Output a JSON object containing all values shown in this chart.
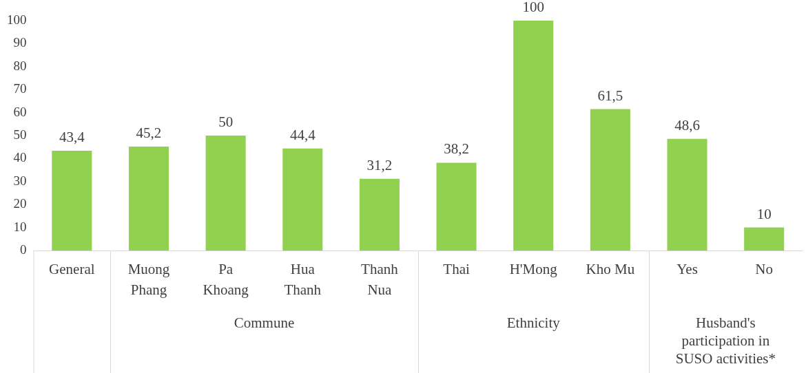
{
  "chart_data": {
    "type": "bar",
    "categories": [
      "General",
      "Muong Phang",
      "Pa Khoang",
      "Hua Thanh",
      "Thanh Nua",
      "Thai",
      "H'Mong",
      "Kho Mu",
      "Yes",
      "No"
    ],
    "values": [
      43.4,
      45.2,
      50,
      44.4,
      31.2,
      38.2,
      100,
      61.5,
      48.6,
      10
    ],
    "value_labels": [
      "43,4",
      "45,2",
      "50",
      "44,4",
      "31,2",
      "38,2",
      "100",
      "61,5",
      "48,6",
      "10"
    ],
    "color": "#92d050",
    "ylim": [
      0,
      100
    ],
    "yticks": [
      0,
      10,
      20,
      30,
      40,
      50,
      60,
      70,
      80,
      90,
      100
    ],
    "grid": false,
    "legend": false,
    "annotations": [
      "Commune",
      "Ethnicity",
      "Husband's participation in SUSO activities*"
    ]
  }
}
